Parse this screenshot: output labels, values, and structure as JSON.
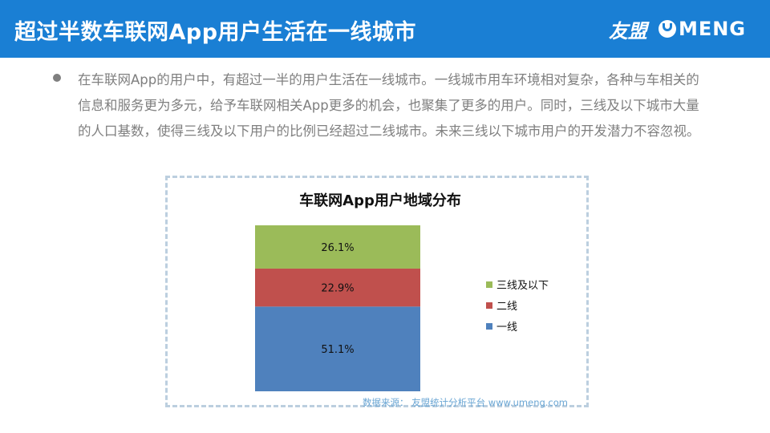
{
  "header": {
    "title": "超过半数车联网App用户生活在一线城市",
    "brand_cn": "友盟",
    "brand_en": "MENG"
  },
  "paragraph": "在车联网App的用户中，有超过一半的用户生活在一线城市。一线城市用车环境相对复杂，各种与车相关的信息和服务更为多元，给予车联网相关App更多的机会，也聚集了更多的用户。同时，三线及以下城市大量的人口基数，使得三线及以下用户的比例已经超过二线城市。未来三线以下城市用户的开发潜力不容忽视。",
  "source": "数据来源： 友盟统计分析平台 www.umeng.com",
  "colors": {
    "header_bg": "#1a7fd4",
    "tier1": "#4f81bd",
    "tier2": "#c0504d",
    "tier3": "#9bbb59"
  },
  "chart_data": {
    "type": "bar",
    "stacked": true,
    "title": "车联网App用户地域分布",
    "categories": [
      ""
    ],
    "series": [
      {
        "name": "一线",
        "values": [
          51.1
        ],
        "label": "51.1%",
        "color": "#4f81bd"
      },
      {
        "name": "二线",
        "values": [
          22.9
        ],
        "label": "22.9%",
        "color": "#c0504d"
      },
      {
        "name": "三线及以下",
        "values": [
          26.1
        ],
        "label": "26.1%",
        "color": "#9bbb59"
      }
    ],
    "legend_order": [
      "三线及以下",
      "二线",
      "一线"
    ],
    "legend_position": "right",
    "ylim": [
      0,
      100.1
    ],
    "unit": "%",
    "grid": false
  }
}
